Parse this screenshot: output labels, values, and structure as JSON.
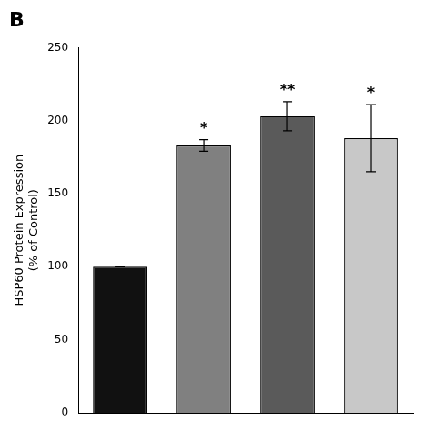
{
  "chart_data": {
    "type": "bar",
    "title": "B",
    "ylabel": "HSP60 Protein Expression\n(% of Control)",
    "categories": [
      null,
      null,
      null,
      null
    ],
    "values": [
      100,
      183,
      203,
      188
    ],
    "errors": [
      0,
      4,
      10,
      23
    ],
    "colors": [
      "#111111",
      "#808080",
      "#5a5a5a",
      "#c8c8c8"
    ],
    "annotations": [
      null,
      "*",
      "**",
      "*"
    ],
    "ylim": [
      0,
      250
    ],
    "yticks": [
      0,
      50,
      100,
      150,
      200,
      250
    ],
    "grid": false,
    "tick_labels": "y"
  }
}
